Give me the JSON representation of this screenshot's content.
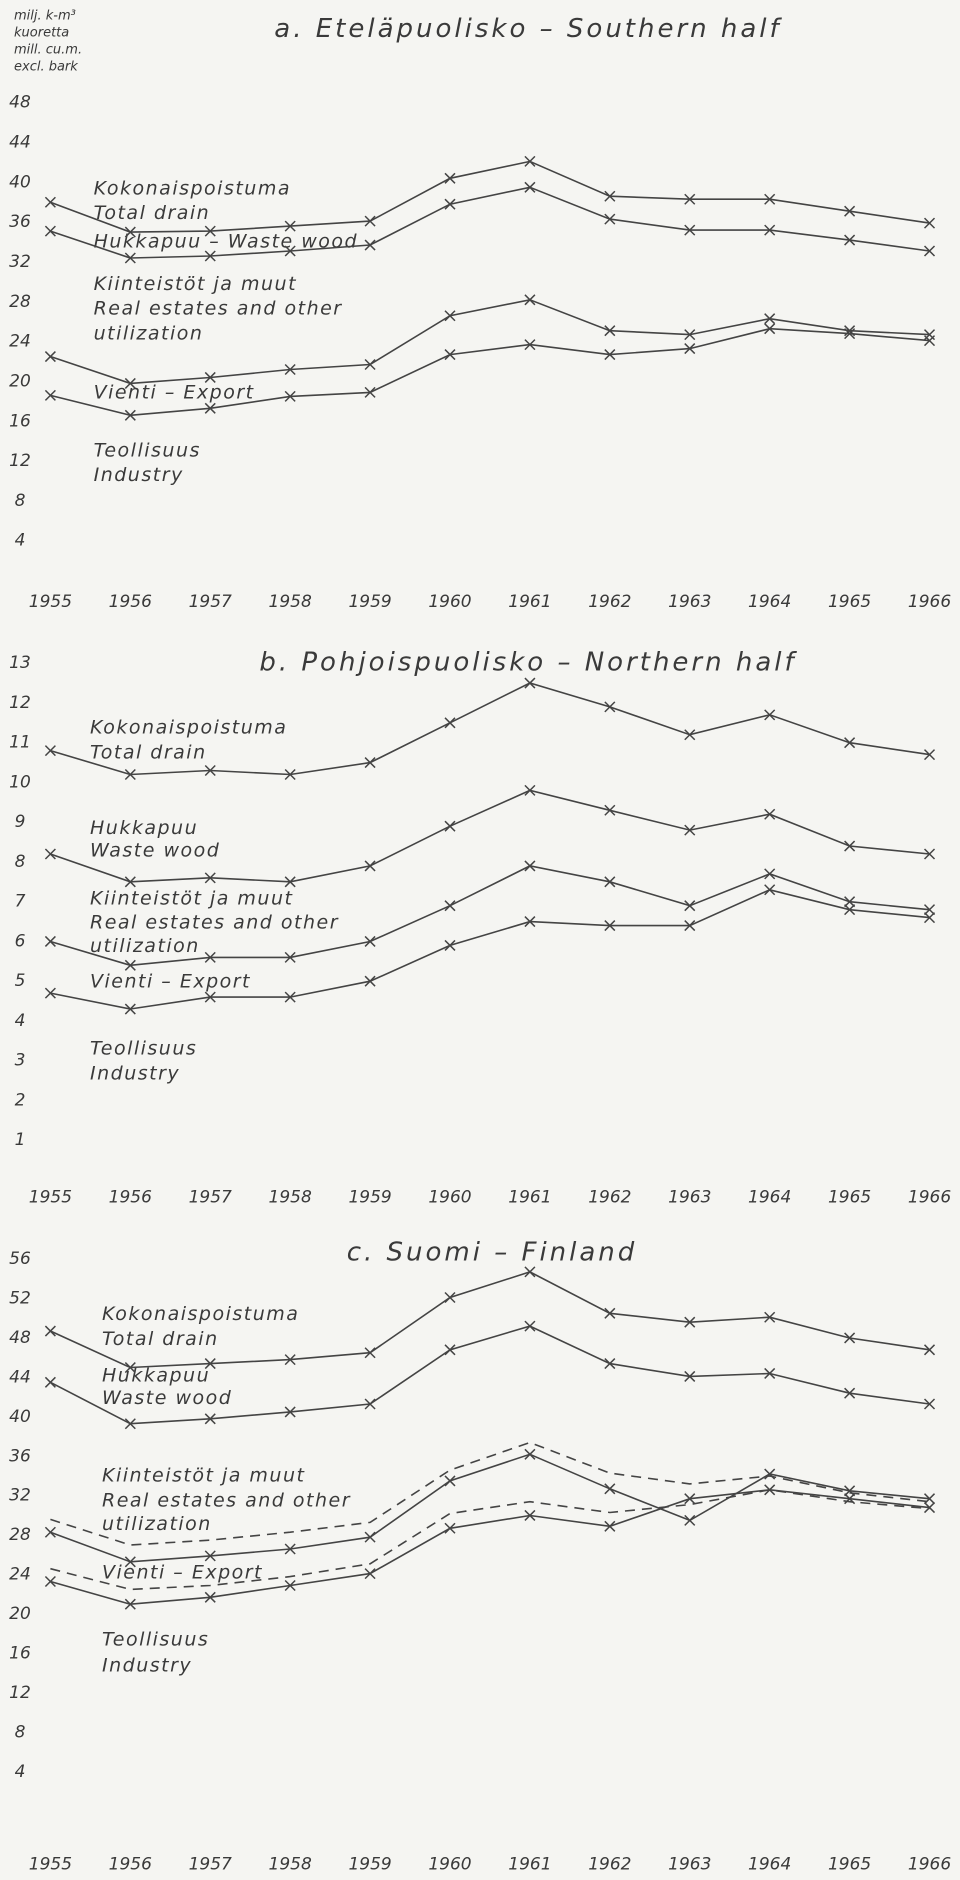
{
  "chart_data": [
    {
      "type": "line",
      "title": "a. Eteläpuolisko – Southern half",
      "y_label": [
        "milj. k-m³",
        "kuoretta",
        "mill. cu.m.",
        "excl. bark"
      ],
      "categories": [
        "1955",
        "1956",
        "1957",
        "1958",
        "1959",
        "1960",
        "1961",
        "1962",
        "1963",
        "1964",
        "1965",
        "1966"
      ],
      "ylim": [
        0,
        48
      ],
      "yticks": [
        4,
        8,
        12,
        16,
        20,
        24,
        28,
        32,
        36,
        40,
        44,
        48
      ],
      "annotations": [
        "Kokonaispoistuma",
        "Total drain",
        "Hukkapuu – Waste wood",
        "Kiinteistöt ja muut",
        "Real estates and other",
        "utilization",
        "Vienti – Export",
        "Teollisuus",
        "Industry"
      ],
      "series": [
        {
          "color": "#444444",
          "values": [
            38.0,
            35.0,
            35.1,
            35.6,
            36.1,
            40.4,
            42.1,
            38.6,
            38.3,
            38.3,
            37.1,
            35.9
          ]
        },
        {
          "color": "#444444",
          "values": [
            35.1,
            32.4,
            32.6,
            33.1,
            33.7,
            37.8,
            39.5,
            36.3,
            35.2,
            35.2,
            34.2,
            33.1
          ]
        },
        {
          "color": "#444444",
          "values": [
            22.5,
            19.8,
            20.4,
            21.2,
            21.7,
            26.6,
            28.2,
            25.1,
            24.7,
            26.3,
            25.1,
            24.7
          ]
        },
        {
          "color": "#444444",
          "values": [
            18.6,
            16.6,
            17.3,
            18.5,
            18.9,
            22.7,
            23.7,
            22.7,
            23.3,
            25.3,
            24.8,
            24.1
          ]
        }
      ]
    },
    {
      "type": "line",
      "title": "b. Pohjoispuolisko – Northern half",
      "categories": [
        "1955",
        "1956",
        "1957",
        "1958",
        "1959",
        "1960",
        "1961",
        "1962",
        "1963",
        "1964",
        "1965",
        "1966"
      ],
      "ylim": [
        0,
        13
      ],
      "yticks": [
        1,
        2,
        3,
        4,
        5,
        6,
        7,
        8,
        9,
        10,
        11,
        12,
        13
      ],
      "annotations": [
        "Kokonaispoistuma",
        "Total drain",
        "Hukkapuu",
        "Waste wood",
        "Kiinteistöt ja muut",
        "Real estates and other",
        "utilization",
        "Vienti – Export",
        "Teollisuus",
        "Industry"
      ],
      "series": [
        {
          "color": "#444444",
          "values": [
            10.8,
            10.2,
            10.3,
            10.2,
            10.5,
            11.5,
            12.5,
            11.9,
            11.2,
            11.7,
            11.0,
            10.7
          ]
        },
        {
          "color": "#444444",
          "values": [
            8.2,
            7.5,
            7.6,
            7.5,
            7.9,
            8.9,
            9.8,
            9.3,
            8.8,
            9.2,
            8.4,
            8.2
          ]
        },
        {
          "color": "#444444",
          "values": [
            6.0,
            5.4,
            5.6,
            5.6,
            6.0,
            6.9,
            7.9,
            7.5,
            6.9,
            7.7,
            7.0,
            6.8
          ]
        },
        {
          "color": "#444444",
          "values": [
            4.7,
            4.3,
            4.6,
            4.6,
            5.0,
            5.9,
            6.5,
            6.4,
            6.4,
            7.3,
            6.8,
            6.6
          ]
        }
      ]
    },
    {
      "type": "line",
      "title": "c. Suomi – Finland",
      "categories": [
        "1955",
        "1956",
        "1957",
        "1958",
        "1959",
        "1960",
        "1961",
        "1962",
        "1963",
        "1964",
        "1965",
        "1966"
      ],
      "ylim": [
        0,
        56
      ],
      "yticks": [
        4,
        8,
        12,
        16,
        20,
        24,
        28,
        32,
        36,
        40,
        44,
        48,
        52,
        56
      ],
      "annotations": [
        "Kokonaispoistuma",
        "Total drain",
        "Hukkapuu",
        "Waste wood",
        "Kiinteistöt ja muut",
        "Real estates and other",
        "utilization",
        "Vienti – Export",
        "Teollisuus",
        "Industry"
      ],
      "series": [
        {
          "color": "#444444",
          "values": [
            48.7,
            45.0,
            45.4,
            45.8,
            46.5,
            52.1,
            54.7,
            50.5,
            49.6,
            50.1,
            48.0,
            46.8
          ]
        },
        {
          "color": "#444444",
          "values": [
            43.5,
            39.3,
            39.8,
            40.5,
            41.3,
            46.8,
            49.2,
            45.4,
            44.1,
            44.4,
            42.4,
            41.3
          ]
        },
        {
          "color": "#444444",
          "dash": true,
          "values": [
            29.6,
            27.0,
            27.5,
            28.3,
            29.3,
            34.6,
            37.4,
            34.3,
            33.2,
            34.0,
            32.3,
            31.4
          ]
        },
        {
          "color": "#444444",
          "values": [
            28.3,
            25.3,
            25.9,
            26.6,
            27.8,
            33.5,
            36.2,
            32.7,
            29.5,
            34.2,
            32.5,
            31.7
          ]
        },
        {
          "color": "#444444",
          "dash": true,
          "values": [
            24.6,
            22.5,
            22.9,
            23.8,
            25.1,
            30.2,
            31.4,
            30.3,
            31.1,
            32.6,
            31.4,
            30.7
          ]
        },
        {
          "color": "#444444",
          "values": [
            23.3,
            21.0,
            21.7,
            22.9,
            24.1,
            28.7,
            30.0,
            28.9,
            31.7,
            32.6,
            31.7,
            30.8
          ]
        }
      ]
    }
  ]
}
